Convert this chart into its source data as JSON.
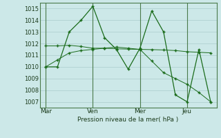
{
  "title": "",
  "xlabel": "Pression niveau de la mer( hPa )",
  "background_color": "#cce8e8",
  "plot_bg_color": "#cce8e8",
  "grid_color": "#aacccc",
  "line_color": "#1a6b1a",
  "ylim": [
    1006.5,
    1015.5
  ],
  "yticks": [
    1007,
    1008,
    1009,
    1010,
    1011,
    1012,
    1013,
    1014,
    1015
  ],
  "xtick_labels": [
    "Mar",
    "Ven",
    "Mer",
    "Jeu"
  ],
  "xtick_positions": [
    0,
    4,
    8,
    12
  ],
  "vline_positions": [
    0,
    4,
    8,
    12
  ],
  "series1_x": [
    0,
    1,
    2,
    3,
    4,
    5,
    6,
    7,
    8,
    9,
    10,
    11,
    12,
    13,
    14
  ],
  "series1_y": [
    1010.0,
    1010.0,
    1013.0,
    1014.0,
    1015.2,
    1012.5,
    1011.5,
    1009.8,
    1011.6,
    1014.8,
    1013.0,
    1007.6,
    1007.0,
    1011.5,
    1007.0
  ],
  "series2_x": [
    0,
    1,
    2,
    3,
    4,
    5,
    6,
    7,
    8,
    9,
    10,
    11,
    12,
    13,
    14
  ],
  "series2_y": [
    1011.8,
    1011.8,
    1011.85,
    1011.75,
    1011.6,
    1011.6,
    1011.55,
    1011.52,
    1011.5,
    1011.48,
    1011.45,
    1011.4,
    1011.3,
    1011.25,
    1011.2
  ],
  "series3_x": [
    0,
    1,
    2,
    3,
    4,
    5,
    6,
    7,
    8,
    9,
    10,
    11,
    12,
    13,
    14
  ],
  "series3_y": [
    1010.0,
    1010.6,
    1011.2,
    1011.4,
    1011.5,
    1011.6,
    1011.7,
    1011.6,
    1011.5,
    1010.5,
    1009.5,
    1009.0,
    1008.5,
    1007.8,
    1007.0
  ]
}
